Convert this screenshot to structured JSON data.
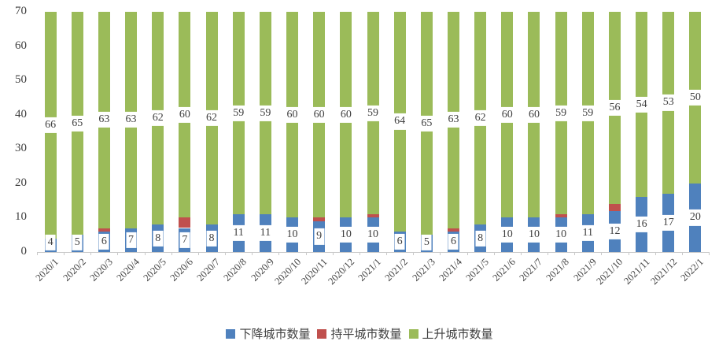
{
  "chart_data": {
    "type": "bar",
    "stacked": true,
    "title": "",
    "xlabel": "",
    "ylabel": "",
    "ylim": [
      0,
      70
    ],
    "yticks": [
      0,
      10,
      20,
      30,
      40,
      50,
      60,
      70
    ],
    "grid": false,
    "legend_position": "bottom",
    "axis_color": "#c9c9c9",
    "text_color": "#404040",
    "label_background": "#ffffff",
    "categories": [
      "2020/1",
      "2020/2",
      "2020/3",
      "2020/4",
      "2020/5",
      "2020/6",
      "2020/7",
      "2020/8",
      "2020/9",
      "2020/10",
      "2020/11",
      "2020/12",
      "2021/1",
      "2021/2",
      "2021/3",
      "2021/4",
      "2021/5",
      "2021/6",
      "2021/7",
      "2021/8",
      "2021/9",
      "2021/10",
      "2021/11",
      "2021/12",
      "2022/1"
    ],
    "series": [
      {
        "name": "下降城市数量",
        "color": "#4F81BD",
        "labels_shown": true,
        "values": [
          4,
          5,
          6,
          7,
          8,
          7,
          8,
          11,
          11,
          10,
          9,
          10,
          10,
          6,
          5,
          6,
          8,
          10,
          10,
          10,
          11,
          12,
          16,
          17,
          20
        ]
      },
      {
        "name": "持平城市数量",
        "color": "#C0504D",
        "labels_shown": false,
        "values": [
          0,
          0,
          1,
          0,
          0,
          3,
          0,
          0,
          0,
          0,
          1,
          0,
          1,
          0,
          0,
          1,
          0,
          0,
          0,
          1,
          0,
          2,
          0,
          0,
          0
        ]
      },
      {
        "name": "上升城市数量",
        "color": "#9BBB59",
        "labels_shown": true,
        "values": [
          66,
          65,
          63,
          63,
          62,
          60,
          62,
          59,
          59,
          60,
          60,
          60,
          59,
          64,
          65,
          63,
          62,
          60,
          60,
          59,
          59,
          56,
          54,
          53,
          50
        ]
      }
    ]
  }
}
